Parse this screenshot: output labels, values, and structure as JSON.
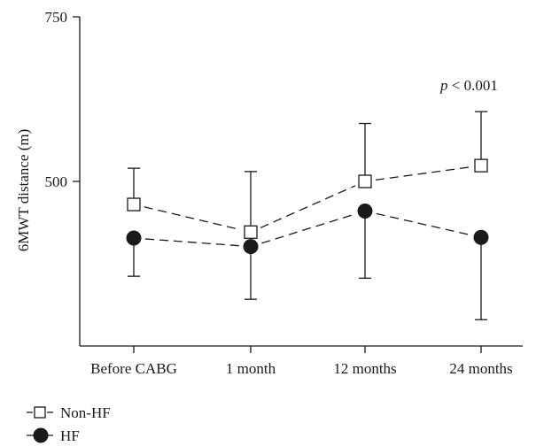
{
  "chart_data": {
    "type": "line",
    "categories": [
      "Before CABG",
      "1 month",
      "12 months",
      "24 months"
    ],
    "ylabel": "6MWT distance (m)",
    "xlabel": "",
    "ylim": [
      250,
      750
    ],
    "yticks": [
      500,
      750
    ],
    "grid": false,
    "legend_position": "bottom-left",
    "annotation": {
      "text_italic": "p",
      "text_rest": " < 0.001"
    },
    "series": [
      {
        "name": "Non-HF",
        "marker": "open-square",
        "values": [
          465,
          423,
          500,
          524
        ],
        "err_upper": [
          520,
          515,
          588,
          606
        ],
        "err_lower": [
          465,
          423,
          500,
          524
        ]
      },
      {
        "name": "HF",
        "marker": "filled-circle",
        "values": [
          414,
          401,
          455,
          415
        ],
        "err_upper": [
          414,
          401,
          455,
          415
        ],
        "err_lower": [
          356,
          321,
          353,
          290
        ]
      }
    ],
    "colors": {
      "ink": "#1a1a1a",
      "background": "#ffffff"
    }
  }
}
